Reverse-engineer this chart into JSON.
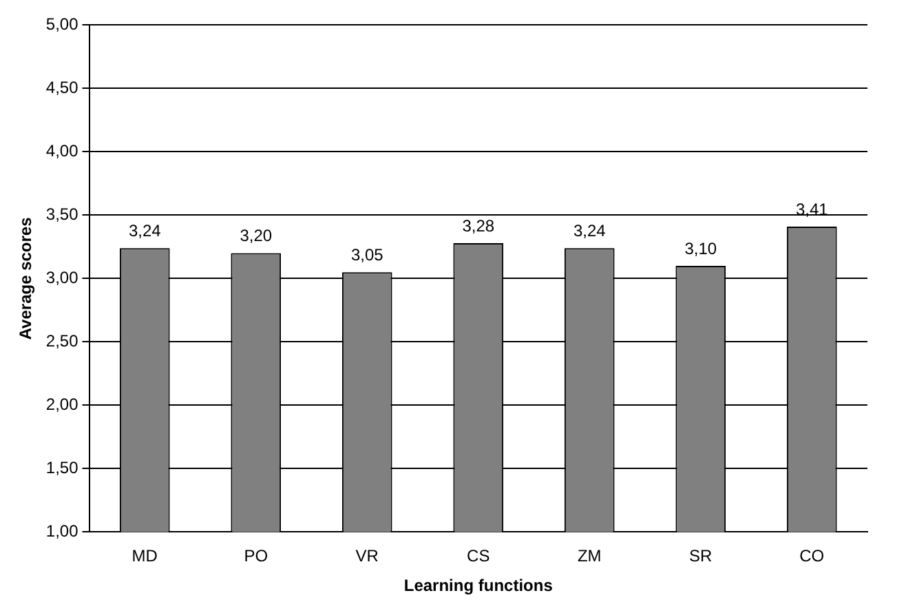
{
  "chart_data": {
    "type": "bar",
    "xlabel": "Learning functions",
    "ylabel": "Average scores",
    "categories": [
      "MD",
      "PO",
      "VR",
      "CS",
      "ZM",
      "SR",
      "CO"
    ],
    "values": [
      3.24,
      3.2,
      3.05,
      3.28,
      3.24,
      3.1,
      3.41
    ],
    "value_labels": [
      "3,24",
      "3,20",
      "3,05",
      "3,28",
      "3,24",
      "3,10",
      "3,41"
    ],
    "color": "#808080",
    "ylim": [
      1,
      5
    ],
    "yticks": [
      {
        "value": 1,
        "label": "1,00"
      },
      {
        "value": 1.5,
        "label": "1,50"
      },
      {
        "value": 2,
        "label": "2,00"
      },
      {
        "value": 2.5,
        "label": "2,50"
      },
      {
        "value": 3,
        "label": "3,00"
      },
      {
        "value": 3.5,
        "label": "3,50"
      },
      {
        "value": 4,
        "label": "4,00"
      },
      {
        "value": 4.5,
        "label": "4,50"
      },
      {
        "value": 5,
        "label": "5,00"
      }
    ],
    "grid": "y",
    "legend": false
  }
}
